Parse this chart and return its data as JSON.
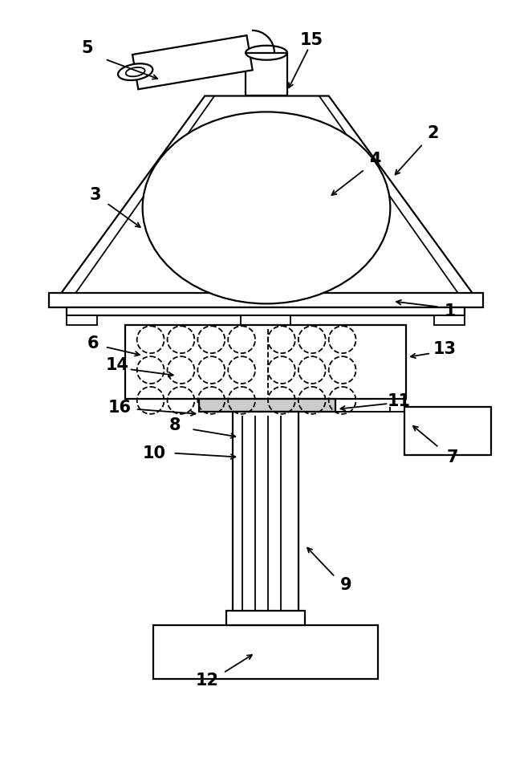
{
  "fig_width": 6.63,
  "fig_height": 9.52,
  "dpi": 100,
  "bg_color": "#ffffff",
  "lc": "#000000",
  "lw": 1.6,
  "lw2": 1.3,
  "gray": "#999999",
  "lgray": "#cccccc"
}
